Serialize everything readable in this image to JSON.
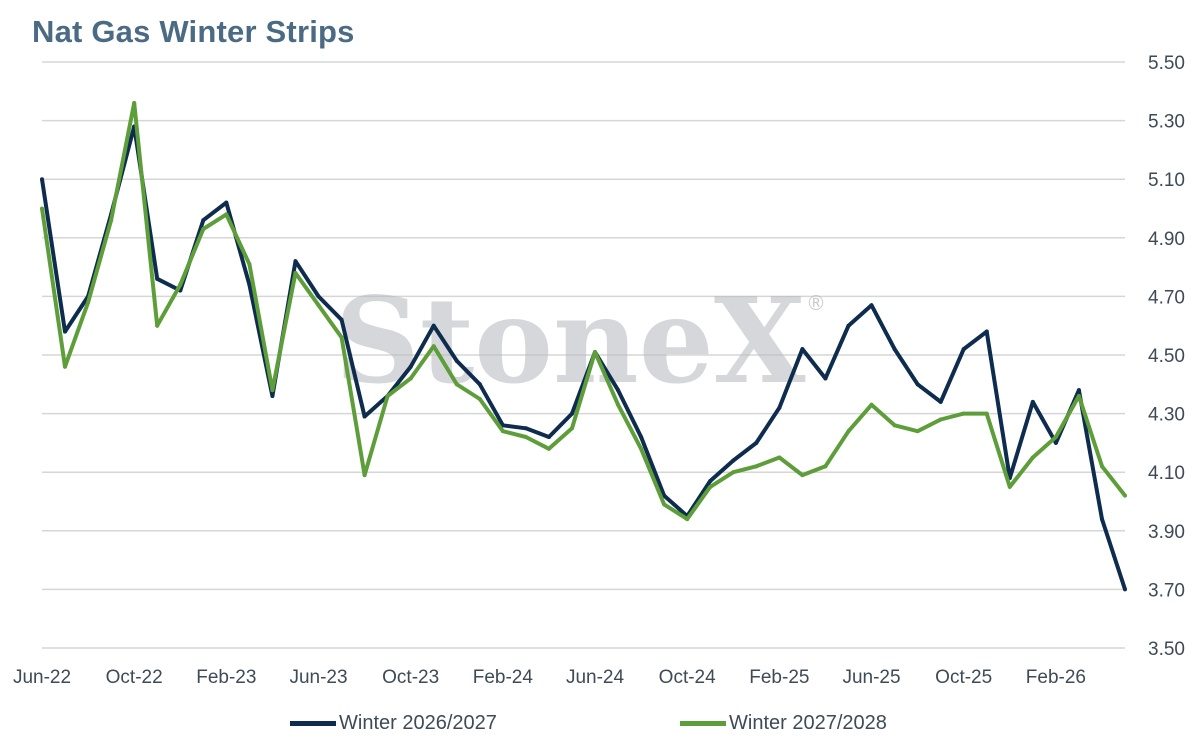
{
  "chart_data": {
    "type": "line",
    "title": "Nat Gas Winter Strips",
    "xlabel": "",
    "ylabel": "",
    "ylim": [
      3.5,
      5.5
    ],
    "yticks": [
      "5.50",
      "5.30",
      "5.10",
      "4.90",
      "4.70",
      "4.50",
      "4.30",
      "4.10",
      "3.90",
      "3.70",
      "3.50"
    ],
    "xticks": [
      "Jun-22",
      "Oct-22",
      "Feb-23",
      "Jun-23",
      "Oct-23",
      "Feb-24",
      "Jun-24",
      "Oct-24",
      "Feb-25",
      "Jun-25",
      "Oct-25",
      "Feb-26"
    ],
    "y_axis_position": "right",
    "grid": true,
    "legend_position": "bottom",
    "x": [
      "Jun-22",
      "Jul-22",
      "Aug-22",
      "Sep-22",
      "Oct-22",
      "Nov-22",
      "Dec-22",
      "Jan-23",
      "Feb-23",
      "Mar-23",
      "Apr-23",
      "May-23",
      "Jun-23",
      "Jul-23",
      "Aug-23",
      "Sep-23",
      "Oct-23",
      "Nov-23",
      "Dec-23",
      "Jan-24",
      "Feb-24",
      "Mar-24",
      "Apr-24",
      "May-24",
      "Jun-24",
      "Jul-24",
      "Aug-24",
      "Sep-24",
      "Oct-24",
      "Nov-24",
      "Dec-24",
      "Jan-25",
      "Feb-25",
      "Mar-25",
      "Apr-25",
      "May-25",
      "Jun-25",
      "Jul-25",
      "Aug-25",
      "Sep-25",
      "Oct-25",
      "Nov-25",
      "Dec-25",
      "Jan-26",
      "Feb-26",
      "Mar-26",
      "Apr-26",
      "May-26"
    ],
    "series": [
      {
        "name": "Winter 2026/2027",
        "color": "#0e2c4e",
        "values": [
          5.1,
          4.58,
          4.7,
          4.98,
          5.28,
          4.76,
          4.72,
          4.96,
          5.02,
          4.74,
          4.36,
          4.82,
          4.7,
          4.62,
          4.29,
          4.36,
          4.46,
          4.6,
          4.48,
          4.4,
          4.26,
          4.25,
          4.22,
          4.3,
          4.51,
          4.38,
          4.22,
          4.02,
          3.95,
          4.07,
          4.14,
          4.2,
          4.32,
          4.52,
          4.42,
          4.6,
          4.67,
          4.52,
          4.4,
          4.34,
          4.52,
          4.58,
          4.08,
          4.34,
          4.2,
          4.38,
          3.94,
          3.7
        ]
      },
      {
        "name": "Winter 2027/2028",
        "color": "#5e9e3a",
        "values": [
          5.0,
          4.46,
          4.68,
          4.96,
          5.36,
          4.6,
          4.74,
          4.93,
          4.98,
          4.81,
          4.38,
          4.78,
          4.67,
          4.56,
          4.09,
          4.36,
          4.42,
          4.53,
          4.4,
          4.35,
          4.24,
          4.22,
          4.18,
          4.25,
          4.51,
          4.33,
          4.18,
          3.99,
          3.94,
          4.05,
          4.1,
          4.12,
          4.15,
          4.09,
          4.12,
          4.24,
          4.33,
          4.26,
          4.24,
          4.28,
          4.3,
          4.3,
          4.05,
          4.15,
          4.22,
          4.36,
          4.12,
          4.02
        ]
      }
    ]
  },
  "watermark": {
    "text": "StoneX",
    "mark": "®"
  },
  "colors": {
    "title": "#4b6b84",
    "grid": "#d6d6d6",
    "axis_text": "#3f4a57"
  }
}
